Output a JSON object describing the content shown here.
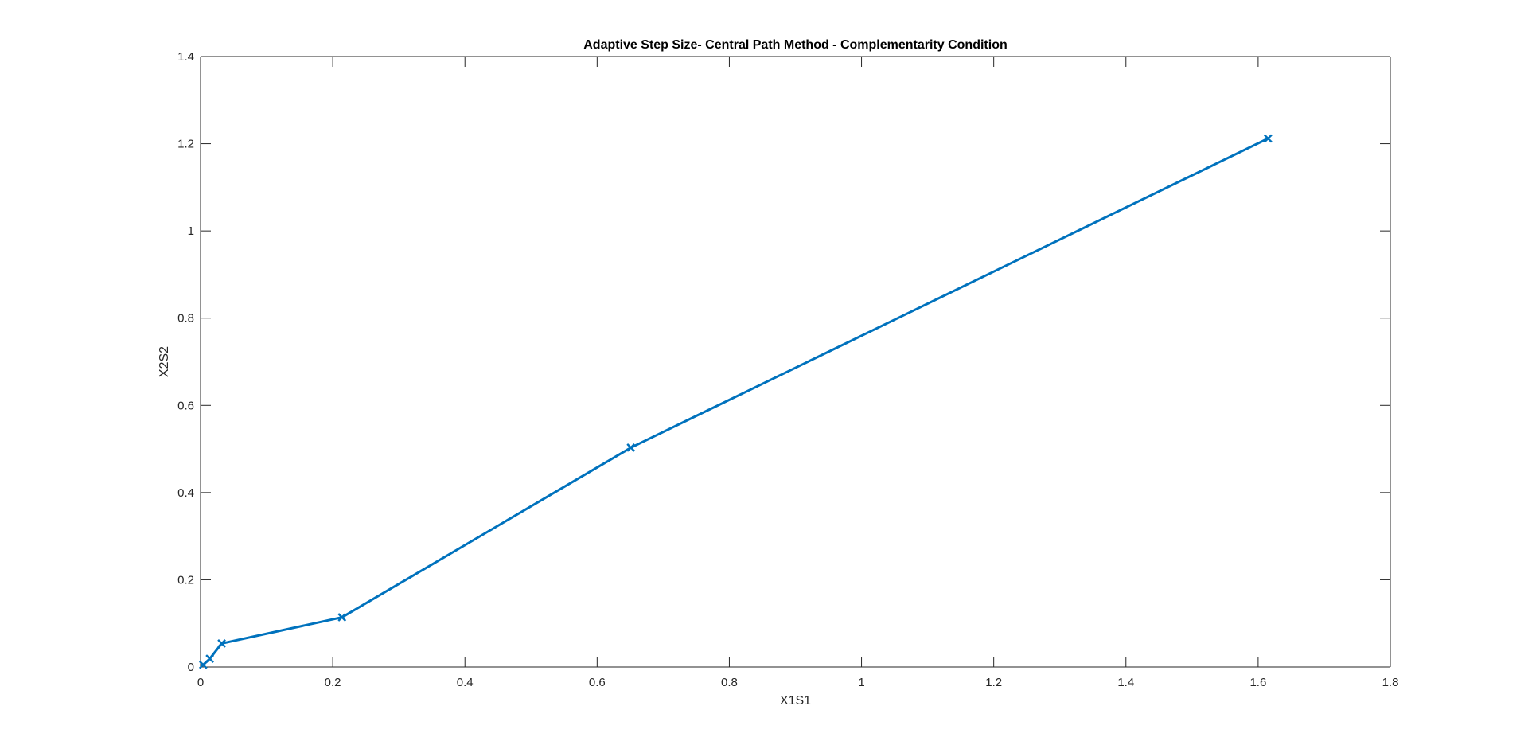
{
  "chart_data": {
    "type": "line",
    "title": "Adaptive Step Size- Central Path Method - Complementarity Condition",
    "xlabel": "X1S1",
    "ylabel": "X2S2",
    "xlim": [
      0,
      1.8
    ],
    "ylim": [
      0,
      1.4
    ],
    "xticks": [
      0,
      0.2,
      0.4,
      0.6,
      0.8,
      1,
      1.2,
      1.4,
      1.6,
      1.8
    ],
    "yticks": [
      0,
      0.2,
      0.4,
      0.6,
      0.8,
      1,
      1.2,
      1.4
    ],
    "xtick_labels": [
      "0",
      "0.2",
      "0.4",
      "0.6",
      "0.8",
      "1",
      "1.2",
      "1.4",
      "1.6",
      "1.8"
    ],
    "ytick_labels": [
      "0",
      "0.2",
      "0.4",
      "0.6",
      "0.8",
      "1",
      "1.2",
      "1.4"
    ],
    "grid": false,
    "box": true,
    "marker": "x",
    "series": [
      {
        "color": "#0072BD",
        "x": [
          1.615,
          0.651,
          0.214,
          0.032,
          0.014,
          0.004
        ],
        "y": [
          1.212,
          0.503,
          0.114,
          0.054,
          0.019,
          0.005
        ]
      }
    ]
  }
}
